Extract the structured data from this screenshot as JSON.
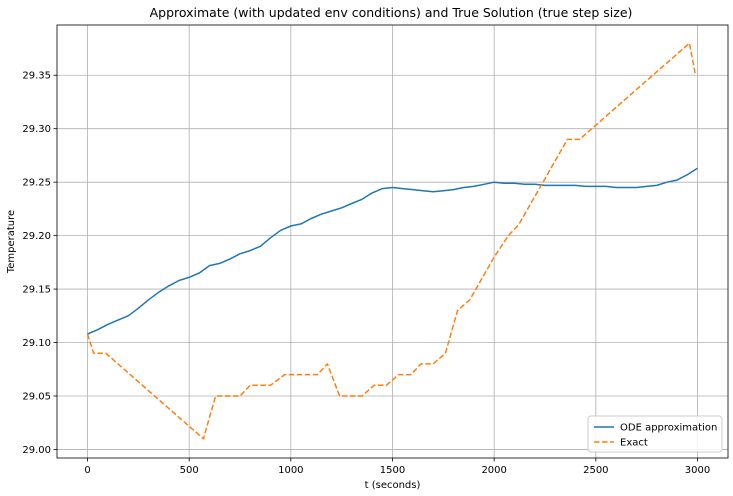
{
  "chart_data": {
    "type": "line",
    "title": "Approximate (with updated env conditions) and True Solution (true step size)",
    "xlabel": "t (seconds)",
    "ylabel": "Temperature",
    "xlim": [
      -150,
      3150
    ],
    "ylim": [
      28.992,
      29.397
    ],
    "x_ticks": [
      0,
      500,
      1000,
      1500,
      2000,
      2500,
      3000
    ],
    "x_tick_labels": [
      "0",
      "500",
      "1000",
      "1500",
      "2000",
      "2500",
      "3000"
    ],
    "y_ticks": [
      29.0,
      29.05,
      29.1,
      29.15,
      29.2,
      29.25,
      29.3,
      29.35
    ],
    "y_tick_labels": [
      "29.00",
      "29.05",
      "29.10",
      "29.15",
      "29.20",
      "29.25",
      "29.30",
      "29.35"
    ],
    "grid": true,
    "legend_position": "lower-right",
    "series": [
      {
        "name": "ODE approximation",
        "color": "#1f77b4",
        "style": "solid",
        "x": [
          0,
          50,
          100,
          150,
          200,
          250,
          300,
          350,
          400,
          450,
          500,
          550,
          600,
          650,
          700,
          750,
          800,
          850,
          900,
          950,
          1000,
          1050,
          1100,
          1150,
          1200,
          1250,
          1300,
          1350,
          1400,
          1450,
          1500,
          1550,
          1600,
          1650,
          1700,
          1750,
          1800,
          1850,
          1900,
          1950,
          2000,
          2050,
          2100,
          2150,
          2200,
          2250,
          2300,
          2350,
          2400,
          2450,
          2500,
          2550,
          2600,
          2650,
          2700,
          2750,
          2800,
          2850,
          2900,
          2950,
          3000
        ],
        "y": [
          29.108,
          29.112,
          29.117,
          29.121,
          29.125,
          29.132,
          29.14,
          29.147,
          29.153,
          29.158,
          29.161,
          29.165,
          29.172,
          29.174,
          29.178,
          29.183,
          29.186,
          29.19,
          29.198,
          29.205,
          29.209,
          29.211,
          29.216,
          29.22,
          29.223,
          29.226,
          29.23,
          29.234,
          29.24,
          29.244,
          29.245,
          29.244,
          29.243,
          29.242,
          29.241,
          29.242,
          29.243,
          29.245,
          29.246,
          29.248,
          29.25,
          29.249,
          29.249,
          29.248,
          29.248,
          29.247,
          29.247,
          29.247,
          29.247,
          29.246,
          29.246,
          29.246,
          29.245,
          29.245,
          29.245,
          29.246,
          29.247,
          29.25,
          29.252,
          29.257,
          29.263
        ]
      },
      {
        "name": "Exact",
        "color": "#ff7f0e",
        "style": "dashed",
        "x": [
          0,
          30,
          90,
          570,
          630,
          750,
          800,
          900,
          970,
          1130,
          1180,
          1240,
          1350,
          1410,
          1470,
          1530,
          1590,
          1640,
          1700,
          1760,
          1820,
          1880,
          1940,
          2000,
          2070,
          2120,
          2180,
          2240,
          2300,
          2360,
          2420,
          2480,
          2540,
          2600,
          2660,
          2720,
          2780,
          2840,
          2900,
          2960,
          2990
        ],
        "y": [
          29.108,
          29.09,
          29.09,
          29.01,
          29.05,
          29.05,
          29.06,
          29.06,
          29.07,
          29.07,
          29.08,
          29.05,
          29.05,
          29.06,
          29.06,
          29.07,
          29.07,
          29.08,
          29.08,
          29.09,
          29.13,
          29.14,
          29.16,
          29.18,
          29.2,
          29.21,
          29.23,
          29.25,
          29.27,
          29.29,
          29.29,
          29.3,
          29.31,
          29.32,
          29.33,
          29.34,
          29.35,
          29.36,
          29.37,
          29.38,
          29.35
        ]
      }
    ]
  }
}
